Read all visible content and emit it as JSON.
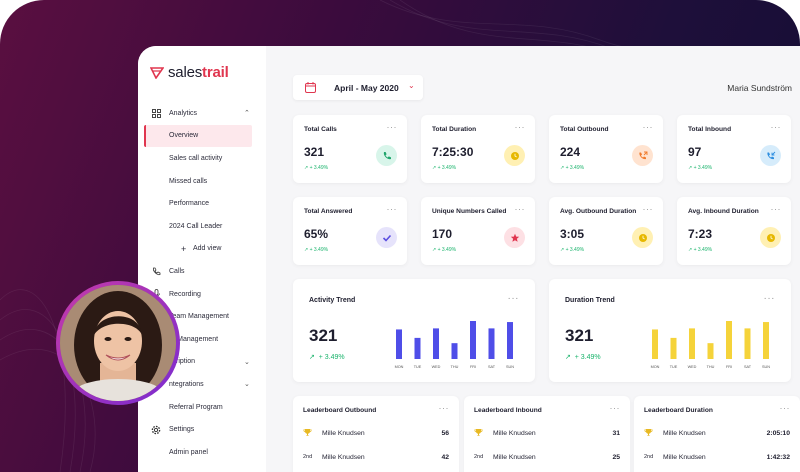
{
  "brand": {
    "name_a": "sales",
    "name_b": "trail",
    "accent": "#e0364f"
  },
  "sidebar": {
    "items": [
      {
        "label": "Analytics",
        "icon": "grid-icon",
        "chevron": "^"
      },
      {
        "label": "Overview"
      },
      {
        "label": "Sales call activity"
      },
      {
        "label": "Missed calls"
      },
      {
        "label": "Performance"
      },
      {
        "label": "2024 Call Leader"
      },
      {
        "label": "Add view"
      },
      {
        "label": "Calls",
        "icon": "phone-icon"
      },
      {
        "label": "Recording",
        "icon": "mic-icon"
      },
      {
        "label": "Team Management",
        "icon": "users-icon"
      },
      {
        "label": "er Management"
      },
      {
        "label": "scription",
        "chevron": "v"
      },
      {
        "label": "ntegrations",
        "chevron": "v"
      },
      {
        "label": "Referral Program"
      },
      {
        "label": "Settings",
        "icon": "gear-icon"
      },
      {
        "label": "Admin panel"
      }
    ]
  },
  "header": {
    "date_range": "April - May 2020",
    "user_name": "Maria Sundström"
  },
  "kpis": [
    {
      "title": "Total Calls",
      "value": "321",
      "change": "↗ + 3.49%",
      "icon": "phone-icon",
      "color": "#d8f5ea",
      "iconColor": "#1fa56b"
    },
    {
      "title": "Total Duration",
      "value": "7:25:30",
      "change": "↗ + 3.49%",
      "icon": "clock-icon",
      "color": "#fff0b3",
      "iconColor": "#e6b800"
    },
    {
      "title": "Total Outbound",
      "value": "224",
      "change": "↗ + 3.49%",
      "icon": "outbound-call-icon",
      "color": "#ffe3d0",
      "iconColor": "#f07a2b"
    },
    {
      "title": "Total Inbound",
      "value": "97",
      "change": "↗ + 3.49%",
      "icon": "inbound-call-icon",
      "color": "#d6ecfb",
      "iconColor": "#2d8ee0"
    },
    {
      "title": "Total Answered",
      "value": "65%",
      "change": "↗ + 3.49%",
      "icon": "check-icon",
      "color": "#e6e3fb",
      "iconColor": "#5b4ee0"
    },
    {
      "title": "Unique Numbers Called",
      "value": "170",
      "change": "↗ + 3.49%",
      "icon": "star-icon",
      "color": "#fde0e4",
      "iconColor": "#e0364f"
    },
    {
      "title": "Avg. Outbound Duration",
      "value": "3:05",
      "change": "↗ + 3.49%",
      "icon": "clock-icon",
      "color": "#fff0b3",
      "iconColor": "#e6b800"
    },
    {
      "title": "Avg. Inbound Duration",
      "value": "7:23",
      "change": "↗ + 3.49%",
      "icon": "clock-icon",
      "color": "#fff0b3",
      "iconColor": "#e6b800"
    }
  ],
  "trends": [
    {
      "title": "Activity Trend",
      "value": "321",
      "change": "+ 3.49%",
      "color": "#4f4ee8",
      "chart_data": {
        "type": "bar",
        "categories": [
          "MON",
          "TUE",
          "WED",
          "THU",
          "FRI",
          "SAT",
          "SUN"
        ],
        "values": [
          28,
          20,
          29,
          15,
          36,
          29,
          35
        ]
      }
    },
    {
      "title": "Duration Trend",
      "value": "321",
      "change": "+ 3.49%",
      "color": "#f5d33a",
      "chart_data": {
        "type": "bar",
        "categories": [
          "MON",
          "TUE",
          "WED",
          "THU",
          "FRI",
          "SAT",
          "SUN"
        ],
        "values": [
          28,
          20,
          29,
          15,
          36,
          29,
          35
        ]
      }
    }
  ],
  "leaderboards": [
    {
      "title": "Leaderboard Outbound",
      "rows": [
        {
          "rank": "🏆",
          "name": "Mille Knudsen",
          "score": "56"
        },
        {
          "rank": "2nd",
          "name": "Mille Knudsen",
          "score": "42"
        }
      ]
    },
    {
      "title": "Leaderboard Inbound",
      "rows": [
        {
          "rank": "🏆",
          "name": "Mille Knudsen",
          "score": "31"
        },
        {
          "rank": "2nd",
          "name": "Mille Knudsen",
          "score": "25"
        }
      ]
    },
    {
      "title": "Leaderboard Duration",
      "rows": [
        {
          "rank": "🏆",
          "name": "Mille Knudsen",
          "score": "2:05:10"
        },
        {
          "rank": "2nd",
          "name": "Mille Knudsen",
          "score": "1:42:32"
        }
      ]
    }
  ],
  "dots": "···"
}
